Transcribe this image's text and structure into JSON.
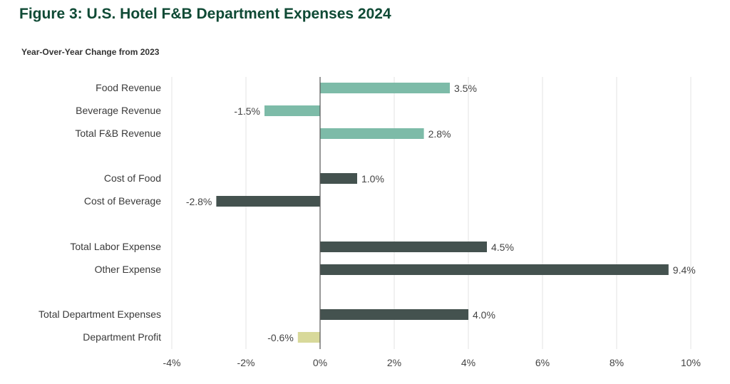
{
  "chart_data": {
    "type": "bar",
    "orientation": "horizontal",
    "title": "Figure 3: U.S. Hotel F&B Department Expenses 2024",
    "subtitle": "Year-Over-Year Change from 2023",
    "xlabel": "",
    "ylabel": "",
    "xlim": [
      -4,
      10
    ],
    "xticks": [
      "-4%",
      "-2%",
      "0%",
      "2%",
      "4%",
      "6%",
      "8%",
      "10%"
    ],
    "grid": true,
    "categories": [
      "Food Revenue",
      "Beverage Revenue",
      "Total F&B Revenue",
      "Cost of Food",
      "Cost of Beverage",
      "Total Labor Expense",
      "Other Expense",
      "Total Department Expenses",
      "Department Profit"
    ],
    "values": [
      3.5,
      -1.5,
      2.8,
      1.0,
      -2.8,
      4.5,
      9.4,
      4.0,
      -0.6
    ],
    "labels": [
      "3.5%",
      "-1.5%",
      "2.8%",
      "1.0%",
      "-2.8%",
      "4.5%",
      "9.4%",
      "4.0%",
      "-0.6%"
    ],
    "groups": [
      0,
      0,
      0,
      1,
      1,
      2,
      2,
      3,
      3
    ],
    "colors": [
      "#7dbba8",
      "#7dbba8",
      "#7dbba8",
      "#44524f",
      "#44524f",
      "#44524f",
      "#44524f",
      "#44524f",
      "#d8d99a"
    ]
  }
}
